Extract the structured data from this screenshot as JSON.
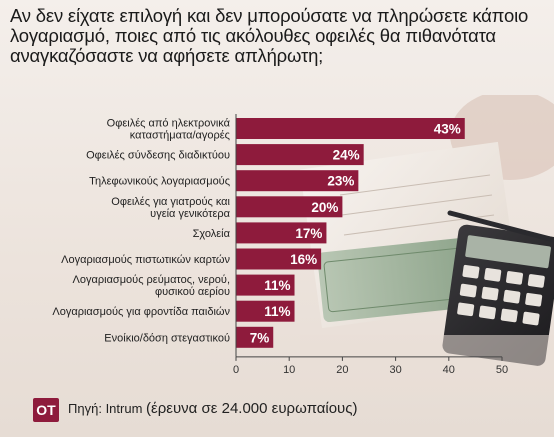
{
  "title": "Αν δεν είχατε επιλογή και δεν μπορούσατε να πληρώσετε κάποιο λογαριασμό, ποιες από τις ακόλουθες οφειλές θα πιθανότατα αναγκαζόσαστε να αφήσετε απλήρωτη;",
  "footer": {
    "logo": "OT",
    "source_prefix": "Πηγή: Intrum",
    "source_note": "(έρευνα σε 24.000 ευρωπαίους)"
  },
  "colors": {
    "bar": "#8e1b3c",
    "logo": "#8e1b3c"
  },
  "chart_data": {
    "type": "bar",
    "orientation": "horizontal",
    "categories": [
      [
        "Οφειλές από ηλεκτρονικά",
        "καταστήματα/αγορές"
      ],
      [
        "Οφειλές σύνδεσης διαδικτύου"
      ],
      [
        "Τηλεφωνικούς λογαριασμούς"
      ],
      [
        "Οφειλές για γιατρούς και",
        "υγεία γενικότερα"
      ],
      [
        "Σχολεία"
      ],
      [
        "Λογαριασμούς πιστωτικών καρτών"
      ],
      [
        "Λογαριασμούς ρεύματος, νερού,",
        "φυσικού αερίου"
      ],
      [
        "Λογαριασμούς για φροντίδα παιδιών"
      ],
      [
        "Ενοίκιο/δόση στεγαστικού"
      ]
    ],
    "values": [
      43,
      24,
      23,
      20,
      17,
      16,
      11,
      11,
      7
    ],
    "value_labels": [
      "43%",
      "24%",
      "23%",
      "20%",
      "17%",
      "16%",
      "11%",
      "11%",
      "7%"
    ],
    "xlim": [
      0,
      50
    ],
    "xticks": [
      "0",
      "10",
      "20",
      "30",
      "40",
      "50"
    ],
    "grid": false,
    "legend": "none"
  }
}
